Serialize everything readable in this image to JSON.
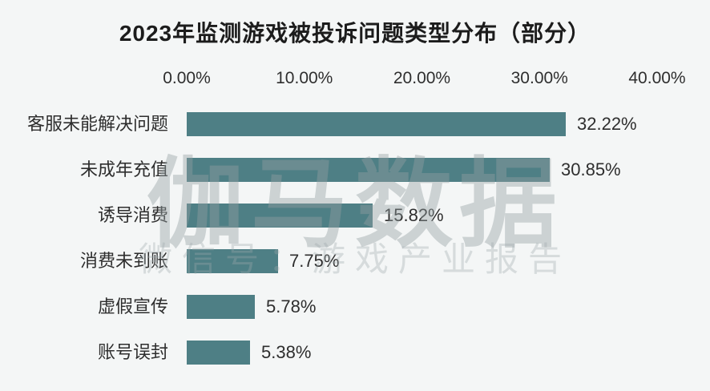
{
  "chart_data": {
    "type": "bar",
    "orientation": "horizontal",
    "title": "2023年监测游戏被投诉问题类型分布（部分）",
    "categories": [
      "客服未能解决问题",
      "未成年充值",
      "诱导消费",
      "消费未到账",
      "虚假宣传",
      "账号误封"
    ],
    "values": [
      32.22,
      30.85,
      15.82,
      7.75,
      5.78,
      5.38
    ],
    "value_labels": [
      "32.22%",
      "30.85%",
      "15.82%",
      "7.75%",
      "5.78%",
      "5.38%"
    ],
    "x_ticks": [
      "0.00%",
      "10.00%",
      "20.00%",
      "30.00%",
      "40.00%"
    ],
    "x_tick_values": [
      0,
      10,
      20,
      30,
      40
    ],
    "xlim": [
      0,
      40
    ],
    "xlabel": "",
    "ylabel": "",
    "grid": false,
    "tick_position": "top",
    "legend_position": "none",
    "bar_color": "#4e7f85",
    "background_color": "#f4f6f6"
  },
  "watermark": {
    "line1": "伽马数据",
    "line2": "微信号：游戏产业报告"
  }
}
